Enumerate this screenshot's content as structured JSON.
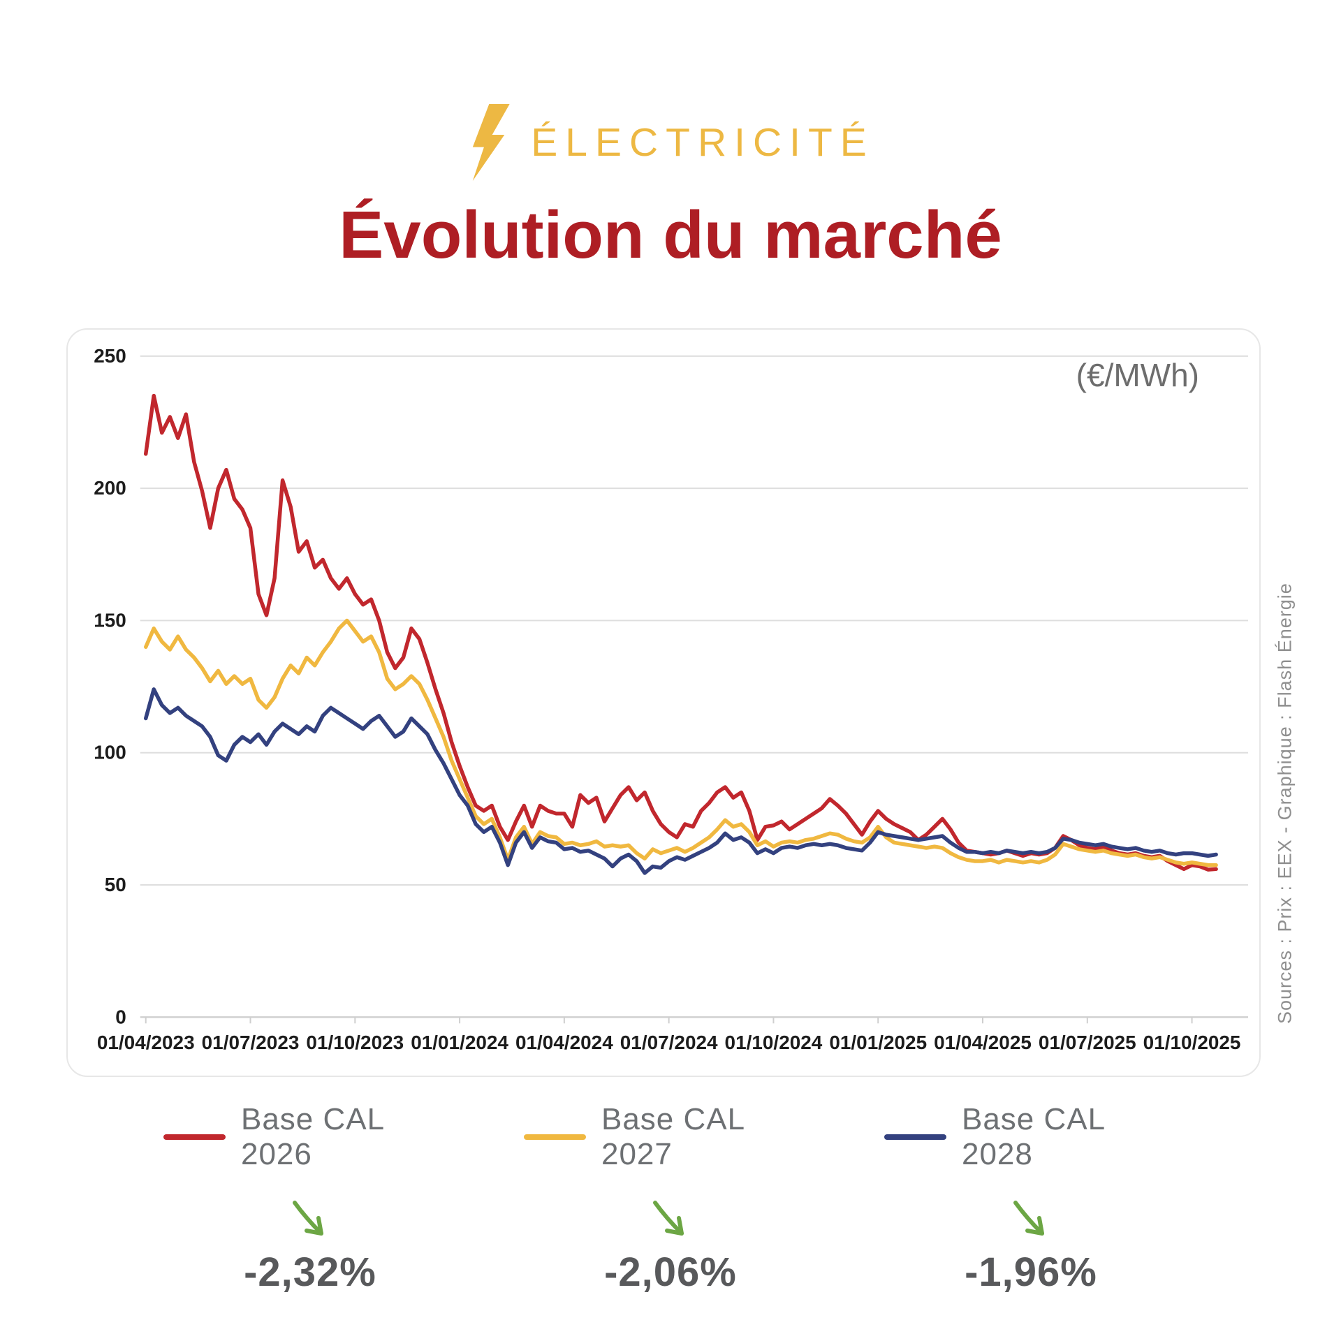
{
  "header": {
    "kicker": "ÉLECTRICITÉ",
    "title": "Évolution du marché"
  },
  "sources": {
    "text": "Sources : Prix : EEX -  Graphique : Flash Énergie"
  },
  "colors": {
    "gold": "#edb843",
    "title_red": "#ae1e24",
    "green_arrow": "#6ca644",
    "gridline": "#dedede",
    "axis_text": "#1c1c1c"
  },
  "chart_data": {
    "type": "line",
    "unit_label": "(€/MWh)",
    "ylim": [
      0,
      250
    ],
    "y_ticks": [
      0,
      50,
      100,
      150,
      200,
      250
    ],
    "grid": "horizontal",
    "legend_position": "bottom",
    "x_tick_labels": [
      "01/04/2023",
      "01/07/2023",
      "01/10/2023",
      "01/01/2024",
      "01/04/2024",
      "01/07/2024",
      "01/10/2024",
      "01/01/2025",
      "01/04/2025",
      "01/07/2025",
      "01/10/2025"
    ],
    "x_tick_weeks": [
      0,
      13,
      26,
      39,
      52,
      65,
      78,
      91,
      104,
      117,
      130
    ],
    "x_total_weeks": 133,
    "x_description": "weekly samples from 01/04/2023 to mid-10/2025",
    "series": [
      {
        "name": "Base CAL 2026",
        "color": "#c1272d",
        "change": "-2,32%",
        "trend": "down",
        "values": [
          213,
          235,
          221,
          227,
          219,
          228,
          210,
          199,
          185,
          200,
          207,
          196,
          192,
          185,
          160,
          152,
          166,
          203,
          193,
          176,
          180,
          170,
          173,
          166,
          162,
          166,
          160,
          156,
          158,
          150,
          138,
          132,
          136,
          147,
          143,
          134,
          124,
          115,
          104,
          95,
          87,
          80,
          78,
          80,
          72,
          67,
          74,
          80,
          72,
          80,
          78,
          77,
          77,
          72,
          84,
          81,
          83,
          74,
          79,
          84,
          87,
          82,
          85,
          78,
          73,
          70,
          68,
          73,
          72,
          78,
          81,
          85,
          87,
          83,
          85,
          78,
          67,
          72,
          72.5,
          74,
          71,
          73,
          75,
          77,
          79,
          82.5,
          80,
          77,
          73,
          69,
          74,
          78,
          75,
          73,
          71.5,
          70,
          67,
          69,
          72,
          75,
          71,
          66,
          63,
          62.5,
          62,
          61.5,
          62,
          63,
          62,
          61,
          62,
          61.5,
          62,
          64,
          68.5,
          67,
          65,
          64,
          63.5,
          64.5,
          63,
          62,
          61.5,
          62,
          61,
          60.5,
          61,
          59,
          57.5,
          56,
          57.5,
          57,
          55.8,
          56
        ]
      },
      {
        "name": "Base CAL 2027",
        "color": "#f0b840",
        "change": "-2,06%",
        "trend": "down",
        "values": [
          140,
          147,
          142,
          139,
          144,
          139,
          136,
          132,
          127,
          131,
          126,
          129,
          126,
          128,
          120,
          117,
          121,
          128,
          133,
          130,
          136,
          133,
          138,
          142,
          147,
          150,
          146,
          142,
          144,
          138,
          128,
          124,
          126,
          129,
          126,
          120,
          113,
          106,
          97,
          90,
          83,
          76,
          73,
          75,
          68,
          59.5,
          68,
          72,
          65.5,
          70,
          68.5,
          68,
          65.5,
          66,
          65,
          65.5,
          66.5,
          64.5,
          65,
          64.5,
          65,
          62,
          60,
          63.5,
          62,
          63,
          64,
          62.5,
          64,
          66,
          68,
          71,
          74.5,
          72,
          73,
          70,
          65,
          66.5,
          64.5,
          66,
          66.5,
          66,
          67,
          67.5,
          68.5,
          69.5,
          69,
          67.5,
          66.5,
          66,
          68,
          72,
          68,
          66,
          65.5,
          65,
          64.5,
          64,
          64.5,
          64,
          62,
          60.5,
          59.5,
          59,
          59,
          59.5,
          58.5,
          59.5,
          59,
          58.5,
          59,
          58.5,
          59.5,
          61.5,
          65.5,
          64.5,
          63.5,
          63,
          62.5,
          63,
          62,
          61.5,
          61,
          61.5,
          60.5,
          60,
          60.5,
          59.5,
          58.5,
          58,
          58.5,
          58,
          57.5,
          57.5
        ]
      },
      {
        "name": "Base CAL 2028",
        "color": "#33417f",
        "change": "-1,96%",
        "trend": "down",
        "values": [
          113,
          124,
          118,
          115,
          117,
          114,
          112,
          110,
          106,
          99,
          97,
          103,
          106,
          104,
          107,
          103,
          108,
          111,
          109,
          107,
          110,
          108,
          114,
          117,
          115,
          113,
          111,
          109,
          112,
          114,
          110,
          106,
          108,
          113,
          110,
          107,
          101,
          96,
          90,
          84,
          80,
          73,
          70,
          72,
          66,
          57.5,
          66,
          70,
          64,
          68,
          66.5,
          66,
          63.5,
          64,
          62.5,
          63,
          61.5,
          60,
          57,
          60,
          61.5,
          59,
          54.5,
          57,
          56.5,
          59,
          60.5,
          59.5,
          61,
          62.5,
          64,
          66,
          69.5,
          67,
          68,
          66,
          62,
          63.5,
          62,
          64,
          64.5,
          64,
          65,
          65.5,
          65,
          65.5,
          65,
          64,
          63.5,
          63,
          66,
          70,
          69,
          68.5,
          68,
          67.5,
          67,
          67.5,
          68,
          68.5,
          66,
          64,
          62.5,
          62.5,
          62,
          62.5,
          62,
          63,
          62.5,
          62,
          62.5,
          62,
          62.5,
          64,
          67.5,
          67,
          66,
          65.5,
          65,
          65.5,
          64.5,
          64,
          63.5,
          64,
          63,
          62.5,
          63,
          62,
          61.5,
          62,
          62,
          61.5,
          61,
          61.5
        ]
      }
    ]
  }
}
